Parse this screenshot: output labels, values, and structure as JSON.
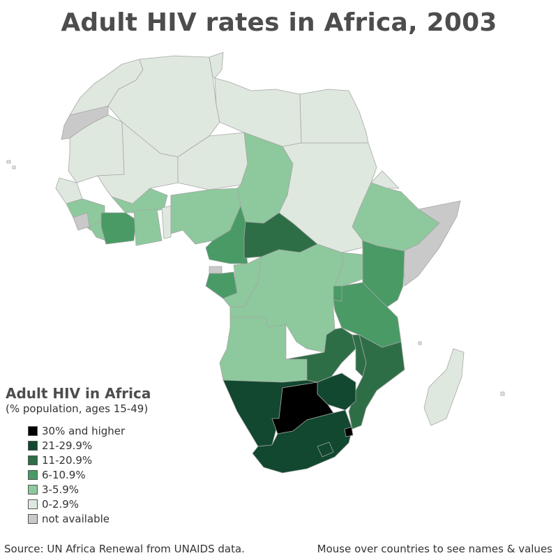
{
  "title": "Adult HIV rates in Africa, 2003",
  "legend": {
    "title": "Adult HIV in Africa",
    "subtitle": "(% population, ages 15-49)",
    "items": [
      {
        "label": "30% and higher",
        "color": "#000000"
      },
      {
        "label": "21-29.9%",
        "color": "#11482f"
      },
      {
        "label": "11-20.9%",
        "color": "#2e6e46"
      },
      {
        "label": "6-10.9%",
        "color": "#4a9a66"
      },
      {
        "label": "3-5.9%",
        "color": "#8dc99c"
      },
      {
        "label": "0-2.9%",
        "color": "#dfe8df"
      },
      {
        "label": "not available",
        "color": "#c9c9c9"
      }
    ]
  },
  "footer": {
    "source": "Source: UN Africa Renewal from UNAIDS data.",
    "hint": "Mouse over countries to see names & values"
  }
}
